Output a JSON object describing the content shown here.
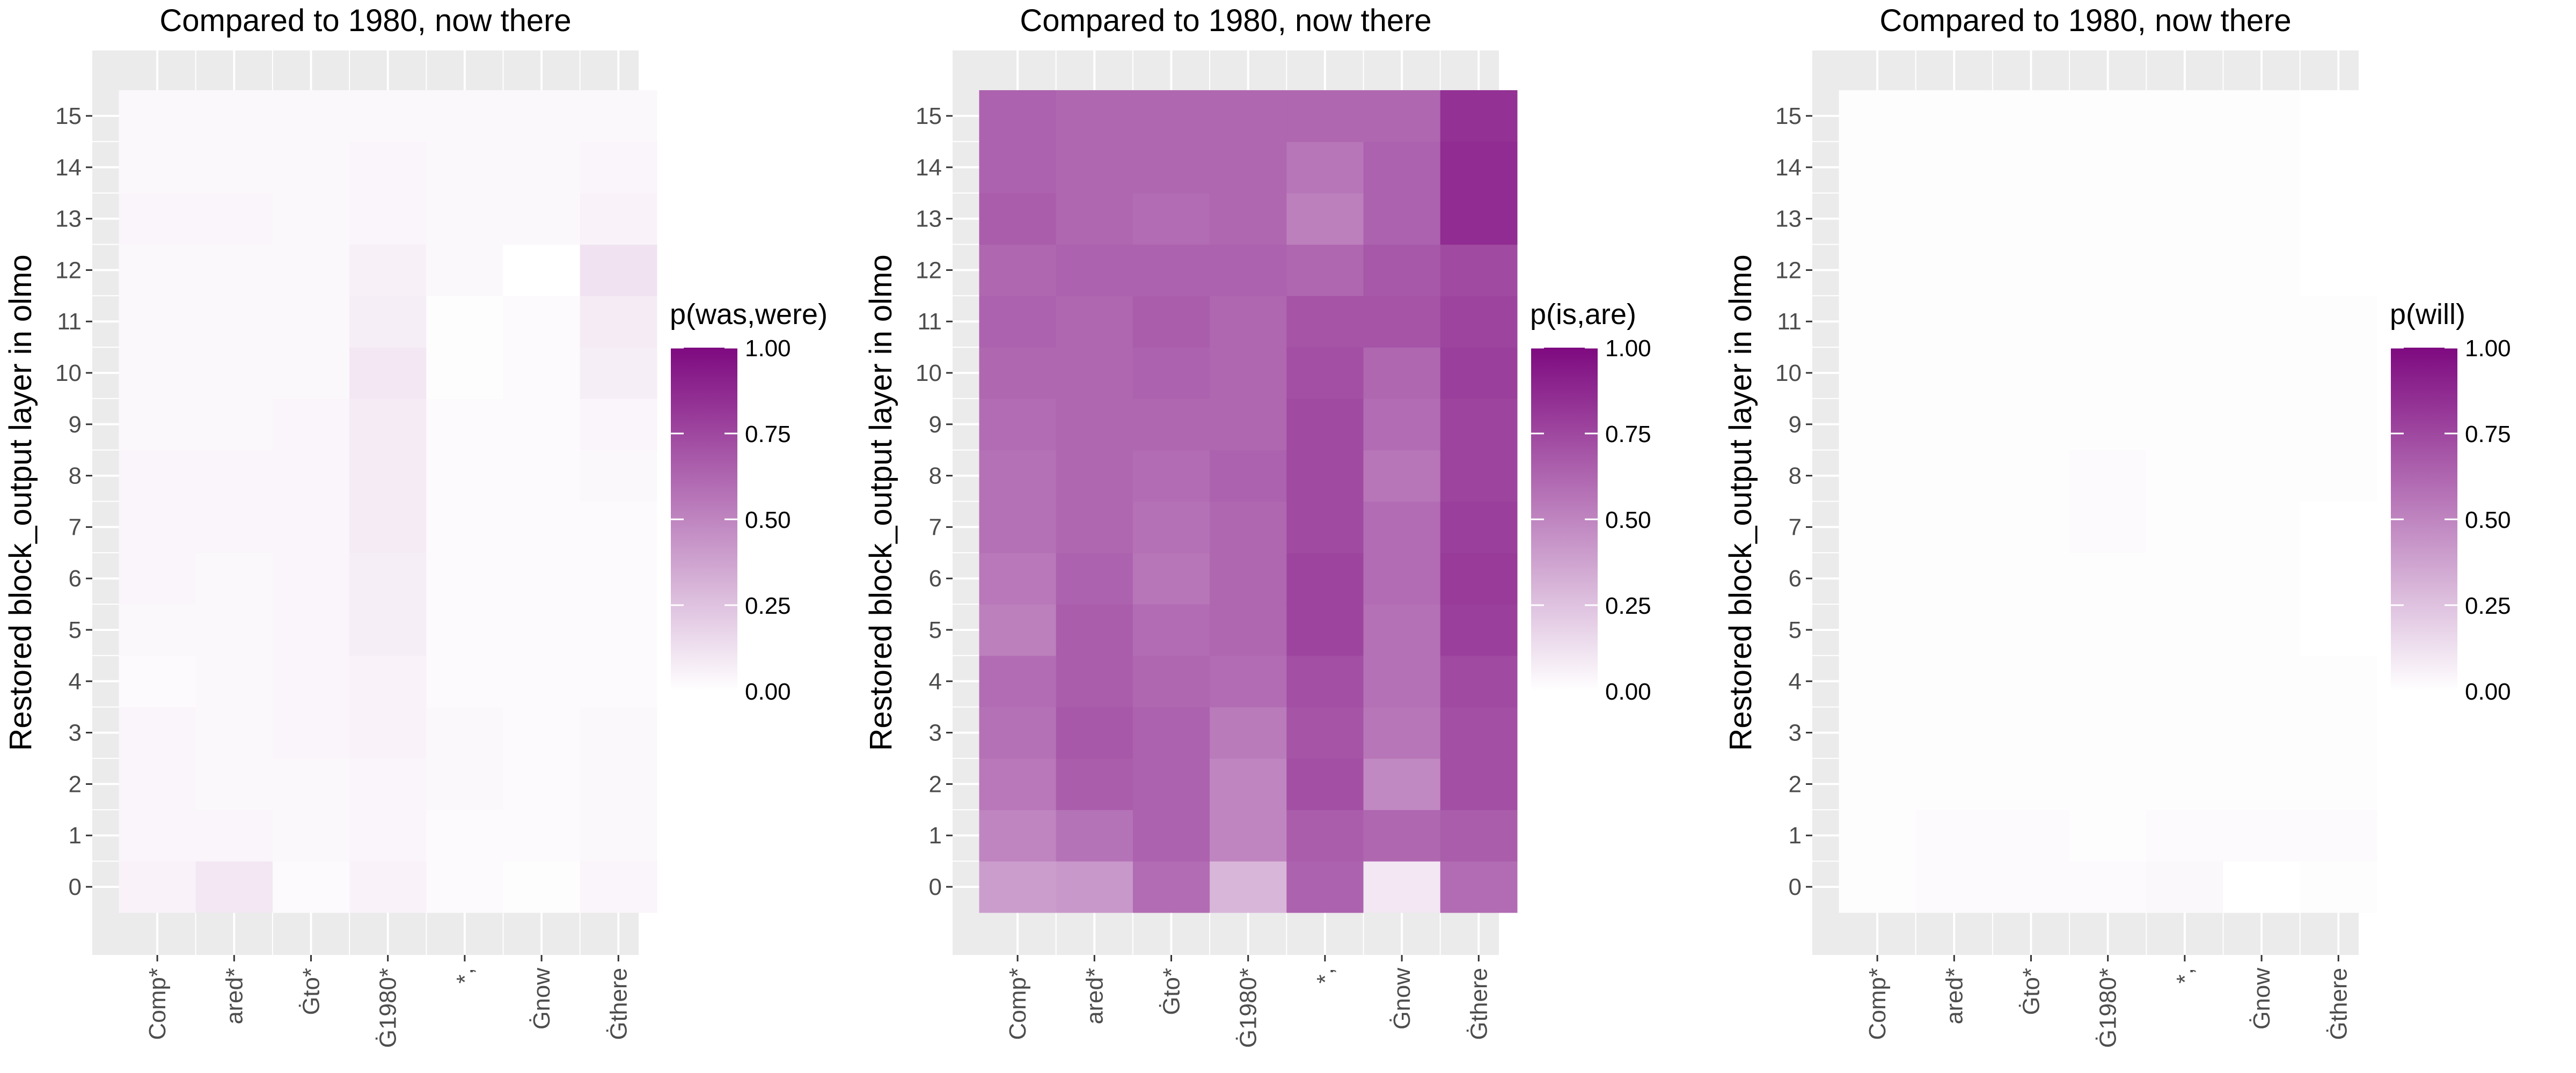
{
  "chart_data": [
    {
      "type": "heatmap",
      "title": "Compared to 1980, now there",
      "ylabel": "Restored block_output layer in olmo",
      "xlabel": "",
      "categories": [
        "Comp*",
        "ared*",
        "Ġto*",
        "Ġ1980*",
        "*,",
        "Ġnow",
        "Ġthere"
      ],
      "layers": [
        0,
        1,
        2,
        3,
        4,
        5,
        6,
        7,
        8,
        9,
        10,
        11,
        12,
        13,
        14,
        15
      ],
      "legend": {
        "title": "p(was,were)",
        "ticks": [
          "0.00",
          "0.25",
          "0.50",
          "0.75",
          "1.00"
        ],
        "position": "right"
      },
      "color_range": [
        0,
        1
      ],
      "low_color": "#ffffff",
      "high_color": "#7e0a80",
      "values": [
        [
          0.05,
          0.04,
          0.04,
          0.04,
          0.02,
          0.03,
          0.04,
          0.04,
          0.04,
          0.03,
          0.03,
          0.03,
          0.03,
          0.04,
          0.03,
          0.03
        ],
        [
          0.1,
          0.04,
          0.03,
          0.03,
          0.03,
          0.03,
          0.03,
          0.04,
          0.04,
          0.03,
          0.03,
          0.03,
          0.03,
          0.04,
          0.03,
          0.03
        ],
        [
          0.02,
          0.03,
          0.03,
          0.04,
          0.04,
          0.04,
          0.04,
          0.04,
          0.04,
          0.04,
          0.03,
          0.03,
          0.03,
          0.03,
          0.03,
          0.03
        ],
        [
          0.05,
          0.04,
          0.04,
          0.05,
          0.05,
          0.07,
          0.07,
          0.08,
          0.08,
          0.08,
          0.1,
          0.07,
          0.06,
          0.04,
          0.04,
          0.03
        ],
        [
          0.02,
          0.02,
          0.03,
          0.03,
          0.02,
          0.02,
          0.02,
          0.02,
          0.02,
          0.02,
          0.01,
          0.01,
          0.03,
          0.03,
          0.03,
          0.03
        ],
        [
          0.01,
          0.02,
          0.02,
          0.02,
          0.02,
          0.02,
          0.02,
          0.02,
          0.02,
          0.02,
          0.02,
          0.02,
          0.0,
          0.03,
          0.03,
          0.03
        ],
        [
          0.04,
          0.03,
          0.03,
          0.03,
          0.02,
          0.02,
          0.02,
          0.02,
          0.03,
          0.04,
          0.07,
          0.08,
          0.12,
          0.05,
          0.04,
          0.03
        ]
      ]
    },
    {
      "type": "heatmap",
      "title": "Compared to 1980, now there",
      "ylabel": "Restored block_output layer in olmo",
      "xlabel": "",
      "categories": [
        "Comp*",
        "ared*",
        "Ġto*",
        "Ġ1980*",
        "*,",
        "Ġnow",
        "Ġthere"
      ],
      "layers": [
        0,
        1,
        2,
        3,
        4,
        5,
        6,
        7,
        8,
        9,
        10,
        11,
        12,
        13,
        14,
        15
      ],
      "legend": {
        "title": "p(is,are)",
        "ticks": [
          "0.00",
          "0.25",
          "0.50",
          "0.75",
          "1.00"
        ],
        "position": "right"
      },
      "color_range": [
        0,
        1
      ],
      "low_color": "#ffffff",
      "high_color": "#7e0a80",
      "values": [
        [
          0.4,
          0.5,
          0.55,
          0.58,
          0.6,
          0.52,
          0.55,
          0.58,
          0.58,
          0.6,
          0.62,
          0.64,
          0.62,
          0.66,
          0.64,
          0.64
        ],
        [
          0.42,
          0.57,
          0.66,
          0.68,
          0.66,
          0.66,
          0.64,
          0.62,
          0.62,
          0.62,
          0.62,
          0.62,
          0.64,
          0.62,
          0.62,
          0.62
        ],
        [
          0.6,
          0.64,
          0.64,
          0.64,
          0.62,
          0.6,
          0.56,
          0.58,
          0.6,
          0.62,
          0.64,
          0.66,
          0.64,
          0.6,
          0.62,
          0.62
        ],
        [
          0.3,
          0.5,
          0.5,
          0.54,
          0.6,
          0.62,
          0.62,
          0.62,
          0.64,
          0.62,
          0.62,
          0.62,
          0.64,
          0.62,
          0.62,
          0.62
        ],
        [
          0.64,
          0.66,
          0.72,
          0.7,
          0.72,
          0.76,
          0.76,
          0.74,
          0.74,
          0.74,
          0.72,
          0.7,
          0.62,
          0.52,
          0.56,
          0.62
        ],
        [
          0.1,
          0.62,
          0.48,
          0.56,
          0.58,
          0.58,
          0.6,
          0.6,
          0.56,
          0.6,
          0.62,
          0.7,
          0.68,
          0.64,
          0.64,
          0.62
        ],
        [
          0.6,
          0.66,
          0.72,
          0.72,
          0.74,
          0.78,
          0.8,
          0.78,
          0.76,
          0.76,
          0.78,
          0.76,
          0.74,
          0.86,
          0.86,
          0.84
        ]
      ]
    },
    {
      "type": "heatmap",
      "title": "Compared to 1980, now there",
      "ylabel": "Restored block_output layer in olmo",
      "xlabel": "",
      "categories": [
        "Comp*",
        "ared*",
        "Ġto*",
        "Ġ1980*",
        "*,",
        "Ġnow",
        "Ġthere"
      ],
      "layers": [
        0,
        1,
        2,
        3,
        4,
        5,
        6,
        7,
        8,
        9,
        10,
        11,
        12,
        13,
        14,
        15
      ],
      "legend": {
        "title": "p(will)",
        "ticks": [
          "0.00",
          "0.25",
          "0.50",
          "0.75",
          "1.00"
        ],
        "position": "right"
      },
      "color_range": [
        0,
        1
      ],
      "low_color": "#ffffff",
      "high_color": "#7e0a80",
      "values": [
        [
          0.01,
          0.01,
          0.01,
          0.01,
          0.01,
          0.01,
          0.01,
          0.01,
          0.01,
          0.01,
          0.01,
          0.01,
          0.01,
          0.01,
          0.01,
          0.01
        ],
        [
          0.02,
          0.02,
          0.01,
          0.01,
          0.01,
          0.01,
          0.01,
          0.01,
          0.01,
          0.01,
          0.01,
          0.01,
          0.01,
          0.01,
          0.01,
          0.01
        ],
        [
          0.02,
          0.02,
          0.01,
          0.01,
          0.01,
          0.01,
          0.01,
          0.01,
          0.01,
          0.01,
          0.01,
          0.01,
          0.01,
          0.01,
          0.01,
          0.01
        ],
        [
          0.02,
          0.01,
          0.01,
          0.01,
          0.01,
          0.01,
          0.01,
          0.02,
          0.02,
          0.01,
          0.01,
          0.01,
          0.01,
          0.01,
          0.01,
          0.01
        ],
        [
          0.03,
          0.02,
          0.01,
          0.01,
          0.01,
          0.01,
          0.01,
          0.01,
          0.01,
          0.01,
          0.01,
          0.01,
          0.01,
          0.01,
          0.01,
          0.01
        ],
        [
          0.0,
          0.02,
          0.01,
          0.01,
          0.01,
          0.01,
          0.01,
          0.01,
          0.01,
          0.01,
          0.01,
          0.01,
          0.01,
          0.01,
          0.01,
          0.01
        ],
        [
          0.01,
          0.02,
          0.01,
          0.01,
          0.01,
          0.0,
          0.0,
          0.0,
          0.01,
          0.01,
          0.01,
          0.01,
          0.0,
          0.0,
          0.0,
          0.0
        ]
      ]
    }
  ]
}
